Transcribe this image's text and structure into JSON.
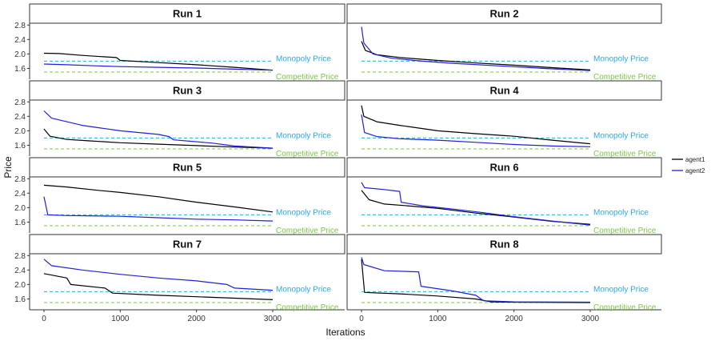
{
  "chart_data": {
    "type": "line",
    "xlabel": "Iterations",
    "ylabel": "Price",
    "xlim": [
      0,
      3000
    ],
    "ylim": [
      1.3,
      2.85
    ],
    "x_ticks": [
      0,
      1000,
      2000,
      3000
    ],
    "y_ticks": [
      1.6,
      2.0,
      2.4,
      2.8
    ],
    "grid": false,
    "legend_position": "right",
    "reference_lines": [
      {
        "label": "Monopoly Price",
        "value": 1.8,
        "color": "#29ABE2"
      },
      {
        "label": "Competitive Price",
        "value": 1.5,
        "color": "#7AC943"
      }
    ],
    "series_colors": {
      "agent1": "#000000",
      "agent2": "#1F1FE0"
    },
    "legend": [
      {
        "name": "agent1",
        "color": "#000000"
      },
      {
        "name": "agent2",
        "color": "#1F1FE0"
      }
    ],
    "panels": [
      {
        "title": "Run 1",
        "series": [
          {
            "name": "agent1",
            "points": [
              [
                0,
                2.02
              ],
              [
                200,
                2.01
              ],
              [
                500,
                1.96
              ],
              [
                950,
                1.9
              ],
              [
                1000,
                1.82
              ],
              [
                1500,
                1.76
              ],
              [
                2000,
                1.7
              ],
              [
                2500,
                1.63
              ],
              [
                3000,
                1.55
              ]
            ]
          },
          {
            "name": "agent2",
            "points": [
              [
                0,
                1.72
              ],
              [
                300,
                1.7
              ],
              [
                700,
                1.67
              ],
              [
                1000,
                1.65
              ],
              [
                1500,
                1.63
              ],
              [
                2000,
                1.61
              ],
              [
                2500,
                1.58
              ],
              [
                3000,
                1.55
              ]
            ]
          }
        ]
      },
      {
        "title": "Run 2",
        "series": [
          {
            "name": "agent1",
            "points": [
              [
                0,
                2.35
              ],
              [
                50,
                2.1
              ],
              [
                200,
                1.98
              ],
              [
                500,
                1.9
              ],
              [
                1000,
                1.82
              ],
              [
                1500,
                1.75
              ],
              [
                2000,
                1.69
              ],
              [
                2500,
                1.62
              ],
              [
                3000,
                1.56
              ]
            ]
          },
          {
            "name": "agent2",
            "points": [
              [
                0,
                2.75
              ],
              [
                30,
                2.3
              ],
              [
                150,
                2.0
              ],
              [
                400,
                1.88
              ],
              [
                800,
                1.8
              ],
              [
                1200,
                1.74
              ],
              [
                1800,
                1.67
              ],
              [
                2400,
                1.6
              ],
              [
                3000,
                1.54
              ]
            ]
          }
        ]
      },
      {
        "title": "Run 3",
        "series": [
          {
            "name": "agent1",
            "points": [
              [
                0,
                2.05
              ],
              [
                80,
                1.85
              ],
              [
                300,
                1.76
              ],
              [
                600,
                1.72
              ],
              [
                1000,
                1.67
              ],
              [
                1500,
                1.63
              ],
              [
                2000,
                1.59
              ],
              [
                2500,
                1.55
              ],
              [
                3000,
                1.52
              ]
            ]
          },
          {
            "name": "agent2",
            "points": [
              [
                0,
                2.55
              ],
              [
                100,
                2.35
              ],
              [
                500,
                2.15
              ],
              [
                1000,
                2.0
              ],
              [
                1500,
                1.9
              ],
              [
                1640,
                1.84
              ],
              [
                1700,
                1.75
              ],
              [
                2200,
                1.66
              ],
              [
                2500,
                1.58
              ],
              [
                3000,
                1.52
              ]
            ]
          }
        ]
      },
      {
        "title": "Run 4",
        "series": [
          {
            "name": "agent1",
            "points": [
              [
                0,
                2.7
              ],
              [
                30,
                2.4
              ],
              [
                200,
                2.25
              ],
              [
                500,
                2.15
              ],
              [
                1000,
                2.0
              ],
              [
                1500,
                1.92
              ],
              [
                2000,
                1.85
              ],
              [
                2500,
                1.74
              ],
              [
                3000,
                1.64
              ]
            ]
          },
          {
            "name": "agent2",
            "points": [
              [
                0,
                2.45
              ],
              [
                40,
                1.95
              ],
              [
                200,
                1.84
              ],
              [
                500,
                1.78
              ],
              [
                1000,
                1.74
              ],
              [
                1500,
                1.68
              ],
              [
                2000,
                1.62
              ],
              [
                2500,
                1.58
              ],
              [
                3000,
                1.56
              ]
            ]
          }
        ]
      },
      {
        "title": "Run 5",
        "series": [
          {
            "name": "agent1",
            "points": [
              [
                0,
                2.62
              ],
              [
                300,
                2.57
              ],
              [
                700,
                2.48
              ],
              [
                1000,
                2.42
              ],
              [
                1500,
                2.3
              ],
              [
                2000,
                2.15
              ],
              [
                2500,
                2.02
              ],
              [
                3000,
                1.88
              ]
            ]
          },
          {
            "name": "agent2",
            "points": [
              [
                0,
                2.3
              ],
              [
                50,
                1.8
              ],
              [
                300,
                1.78
              ],
              [
                1000,
                1.76
              ],
              [
                1500,
                1.72
              ],
              [
                2000,
                1.68
              ],
              [
                2500,
                1.66
              ],
              [
                3000,
                1.63
              ]
            ]
          }
        ]
      },
      {
        "title": "Run 6",
        "series": [
          {
            "name": "agent1",
            "points": [
              [
                0,
                2.48
              ],
              [
                100,
                2.22
              ],
              [
                300,
                2.1
              ],
              [
                600,
                2.05
              ],
              [
                1000,
                1.98
              ],
              [
                1500,
                1.85
              ],
              [
                2000,
                1.74
              ],
              [
                2500,
                1.62
              ],
              [
                3000,
                1.54
              ]
            ]
          },
          {
            "name": "agent2",
            "points": [
              [
                0,
                2.7
              ],
              [
                40,
                2.55
              ],
              [
                300,
                2.5
              ],
              [
                500,
                2.45
              ],
              [
                520,
                2.15
              ],
              [
                800,
                2.05
              ],
              [
                1200,
                1.96
              ],
              [
                1600,
                1.86
              ],
              [
                2000,
                1.75
              ],
              [
                2500,
                1.63
              ],
              [
                3000,
                1.52
              ]
            ]
          }
        ]
      },
      {
        "title": "Run 7",
        "series": [
          {
            "name": "agent1",
            "points": [
              [
                0,
                2.3
              ],
              [
                300,
                2.18
              ],
              [
                350,
                2.0
              ],
              [
                800,
                1.9
              ],
              [
                900,
                1.76
              ],
              [
                1500,
                1.7
              ],
              [
                2000,
                1.66
              ],
              [
                2500,
                1.62
              ],
              [
                3000,
                1.58
              ]
            ]
          },
          {
            "name": "agent2",
            "points": [
              [
                0,
                2.7
              ],
              [
                100,
                2.52
              ],
              [
                500,
                2.4
              ],
              [
                1000,
                2.28
              ],
              [
                1500,
                2.18
              ],
              [
                2000,
                2.1
              ],
              [
                2400,
                2.0
              ],
              [
                2500,
                1.9
              ],
              [
                3000,
                1.84
              ]
            ]
          }
        ]
      },
      {
        "title": "Run 8",
        "series": [
          {
            "name": "agent1",
            "points": [
              [
                0,
                2.7
              ],
              [
                40,
                1.78
              ],
              [
                500,
                1.74
              ],
              [
                1000,
                1.68
              ],
              [
                1500,
                1.6
              ],
              [
                1700,
                1.52
              ],
              [
                2000,
                1.51
              ],
              [
                3000,
                1.5
              ]
            ]
          },
          {
            "name": "agent2",
            "points": [
              [
                0,
                2.75
              ],
              [
                30,
                2.55
              ],
              [
                300,
                2.38
              ],
              [
                750,
                2.35
              ],
              [
                780,
                1.95
              ],
              [
                1200,
                1.82
              ],
              [
                1500,
                1.7
              ],
              [
                1600,
                1.55
              ],
              [
                2000,
                1.52
              ],
              [
                3000,
                1.51
              ]
            ]
          }
        ]
      }
    ]
  }
}
